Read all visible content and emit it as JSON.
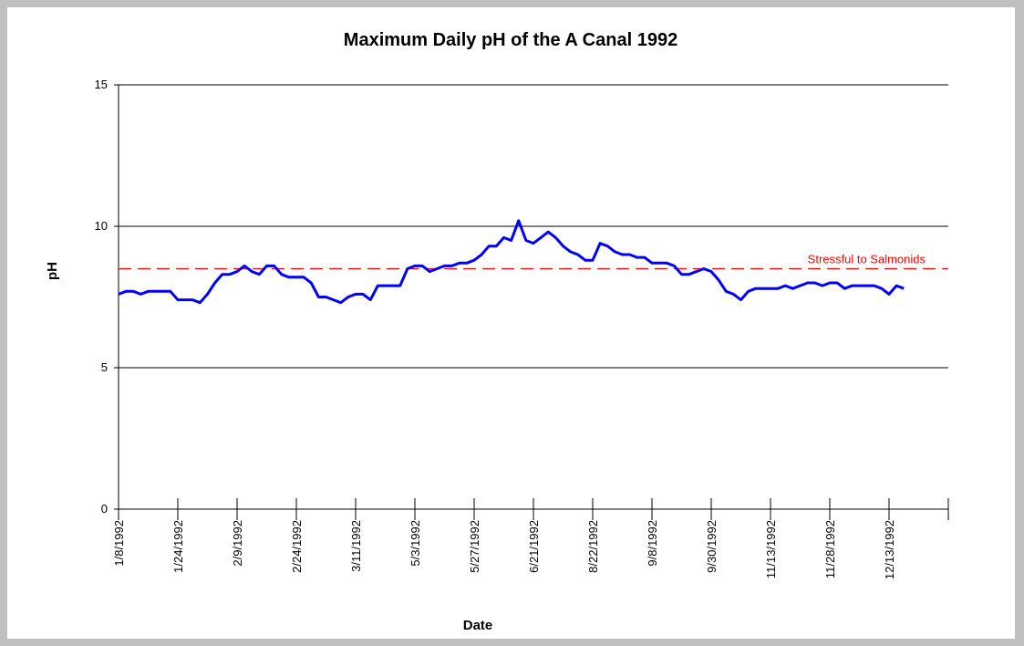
{
  "chart_data": {
    "type": "line",
    "title": "Maximum Daily pH of the A Canal 1992",
    "xlabel": "Date",
    "ylabel": "pH",
    "categories": [
      "1/8/1992",
      null,
      null,
      null,
      null,
      null,
      null,
      null,
      "1/24/1992",
      null,
      null,
      null,
      null,
      null,
      null,
      null,
      "2/9/1992",
      null,
      null,
      null,
      null,
      null,
      null,
      null,
      "2/24/1992",
      null,
      null,
      null,
      null,
      null,
      null,
      null,
      "3/11/1992",
      null,
      null,
      null,
      null,
      null,
      null,
      null,
      "5/3/1992",
      null,
      null,
      null,
      null,
      null,
      null,
      null,
      "5/27/1992",
      null,
      null,
      null,
      null,
      null,
      null,
      null,
      "6/21/1992",
      null,
      null,
      null,
      null,
      null,
      null,
      null,
      "8/22/1992",
      null,
      null,
      null,
      null,
      null,
      null,
      null,
      "9/8/1992",
      null,
      null,
      null,
      null,
      null,
      null,
      null,
      "9/30/1992",
      null,
      null,
      null,
      null,
      null,
      null,
      null,
      "11/13/1992",
      null,
      null,
      null,
      null,
      null,
      null,
      null,
      "11/28/1992",
      null,
      null,
      null,
      null,
      null,
      null,
      null,
      "12/13/1992",
      null,
      null,
      null,
      null,
      null,
      null,
      null,
      null
    ],
    "series": [
      {
        "name": "pH",
        "color": "#0000ff",
        "values": [
          7.6,
          7.7,
          7.7,
          7.6,
          7.7,
          7.7,
          7.7,
          7.7,
          7.4,
          7.4,
          7.4,
          7.3,
          7.6,
          8.0,
          8.3,
          8.3,
          8.4,
          8.6,
          8.4,
          8.3,
          8.6,
          8.6,
          8.3,
          8.2,
          8.2,
          8.2,
          8.0,
          7.5,
          7.5,
          7.4,
          7.3,
          7.5,
          7.6,
          7.6,
          7.4,
          7.9,
          7.9,
          7.9,
          7.9,
          8.5,
          8.6,
          8.6,
          8.4,
          8.5,
          8.6,
          8.6,
          8.7,
          8.7,
          8.8,
          9.0,
          9.3,
          9.3,
          9.6,
          9.5,
          10.2,
          9.5,
          9.4,
          9.6,
          9.8,
          9.6,
          9.3,
          9.1,
          9.0,
          8.8,
          8.8,
          9.4,
          9.3,
          9.1,
          9.0,
          9.0,
          8.9,
          8.9,
          8.7,
          8.7,
          8.7,
          8.6,
          8.3,
          8.3,
          8.4,
          8.5,
          8.4,
          8.1,
          7.7,
          7.6,
          7.4,
          7.7,
          7.8,
          7.8,
          7.8,
          7.8,
          7.9,
          7.8,
          7.9,
          8.0,
          8.0,
          7.9,
          8.0,
          8.0,
          7.8,
          7.9,
          7.9,
          7.9,
          7.9,
          7.8,
          7.6,
          7.9,
          7.8,
          null,
          null,
          null,
          null,
          null,
          null
        ]
      }
    ],
    "ylim": [
      0,
      15
    ],
    "yticks": [
      0,
      5,
      10,
      15
    ],
    "grid": true,
    "threshold": {
      "value": 8.5,
      "label": "Stressful to Salmonids",
      "color": "#ff0000"
    }
  }
}
